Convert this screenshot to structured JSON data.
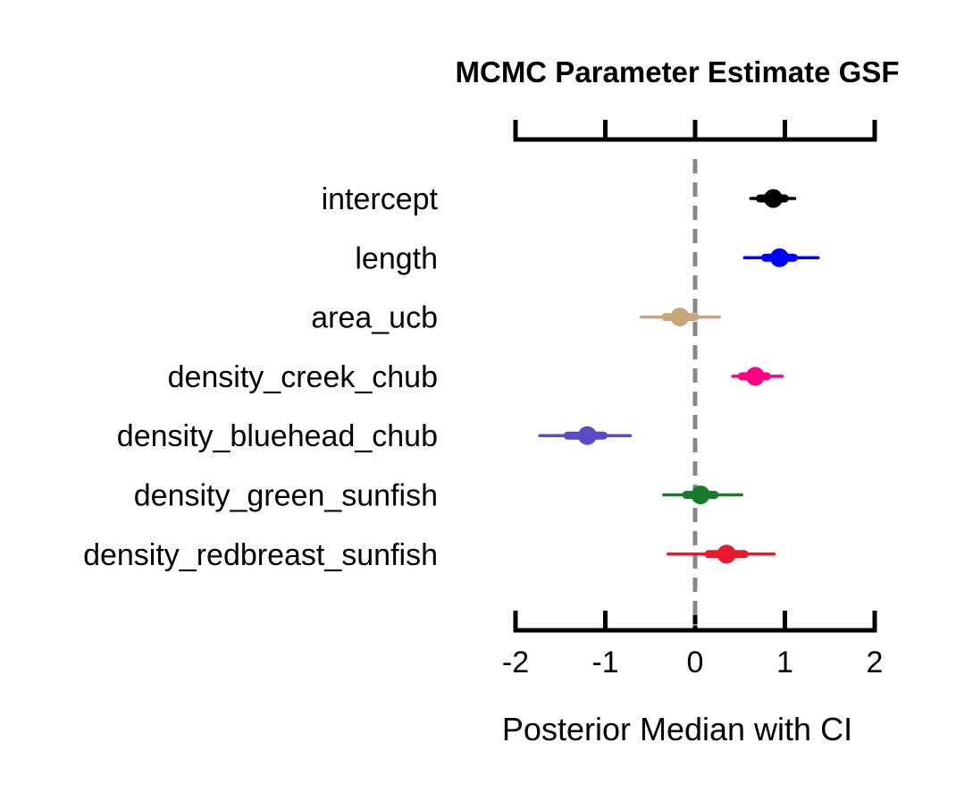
{
  "chart_data": {
    "type": "forest",
    "title": "MCMC Parameter Estimate GSF",
    "xlabel": "Posterior Median with CI",
    "ylabel": "",
    "xlim": [
      -2,
      2
    ],
    "xticks": [
      -2,
      -1,
      0,
      1,
      2
    ],
    "xtick_labels": [
      "-2",
      "-1",
      "0",
      "1",
      "2"
    ],
    "reference_line": 0,
    "grid": false,
    "series": [
      {
        "label": "intercept",
        "median": 0.87,
        "inner": [
          0.72,
          1.0
        ],
        "outer": [
          0.62,
          1.11
        ],
        "color": "#000000"
      },
      {
        "label": "length",
        "median": 0.94,
        "inner": [
          0.78,
          1.1
        ],
        "outer": [
          0.55,
          1.37
        ],
        "color": "#0000ff"
      },
      {
        "label": "area_ucb",
        "median": -0.17,
        "inner": [
          -0.33,
          0.0
        ],
        "outer": [
          -0.6,
          0.27
        ],
        "color": "#c9a57a"
      },
      {
        "label": "density_creek_chub",
        "median": 0.67,
        "inner": [
          0.52,
          0.8
        ],
        "outer": [
          0.42,
          0.97
        ],
        "color": "#ff0080"
      },
      {
        "label": "density_bluehead_chub",
        "median": -1.2,
        "inner": [
          -1.42,
          -1.02
        ],
        "outer": [
          -1.73,
          -0.72
        ],
        "color": "#5a4bc8"
      },
      {
        "label": "density_green_sunfish",
        "median": 0.06,
        "inner": [
          -0.1,
          0.22
        ],
        "outer": [
          -0.35,
          0.52
        ],
        "color": "#1a7a2e"
      },
      {
        "label": "density_redbreast_sunfish",
        "median": 0.35,
        "inner": [
          0.15,
          0.55
        ],
        "outer": [
          -0.3,
          0.88
        ],
        "color": "#e8192c"
      }
    ]
  }
}
